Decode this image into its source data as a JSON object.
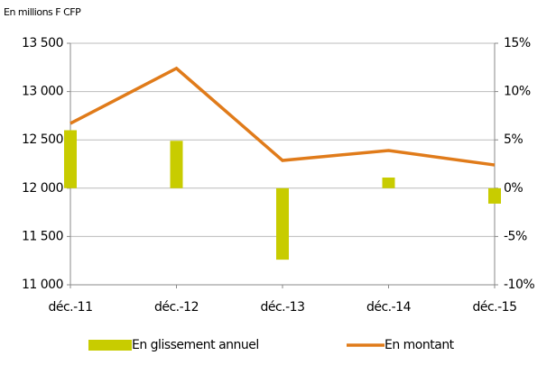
{
  "chart_data": {
    "type": "bar-line",
    "subtitle": "En millions F CFP",
    "categories": [
      "déc.-11",
      "déc.-12",
      "déc.-13",
      "déc.-14",
      "déc.-15"
    ],
    "series": [
      {
        "name": "En glissement annuel",
        "type": "bar",
        "axis": "y2",
        "color": "#c8cc00",
        "values": [
          6.0,
          4.9,
          -7.4,
          1.1,
          -1.6
        ]
      },
      {
        "name": "En montant",
        "type": "line",
        "axis": "y",
        "color": "#e07b1a",
        "values": [
          12670,
          13240,
          12287,
          12390,
          12240
        ]
      }
    ],
    "ylim": [
      11000,
      13500
    ],
    "yticks": [
      {
        "value": 11000,
        "label": "11 000"
      },
      {
        "value": 11500,
        "label": "11 500"
      },
      {
        "value": 12000,
        "label": "12 000"
      },
      {
        "value": 12500,
        "label": "12 500"
      },
      {
        "value": 13000,
        "label": "13 000"
      },
      {
        "value": 13500,
        "label": "13 500"
      }
    ],
    "y2lim": [
      -10,
      15
    ],
    "y2ticks": [
      {
        "value": -10,
        "label": "-10%"
      },
      {
        "value": -5,
        "label": "-5%"
      },
      {
        "value": 0,
        "label": "0%"
      },
      {
        "value": 5,
        "label": "5%"
      },
      {
        "value": 10,
        "label": "10%"
      },
      {
        "value": 15,
        "label": "15%"
      }
    ],
    "grid": true,
    "legend": "bottom"
  }
}
